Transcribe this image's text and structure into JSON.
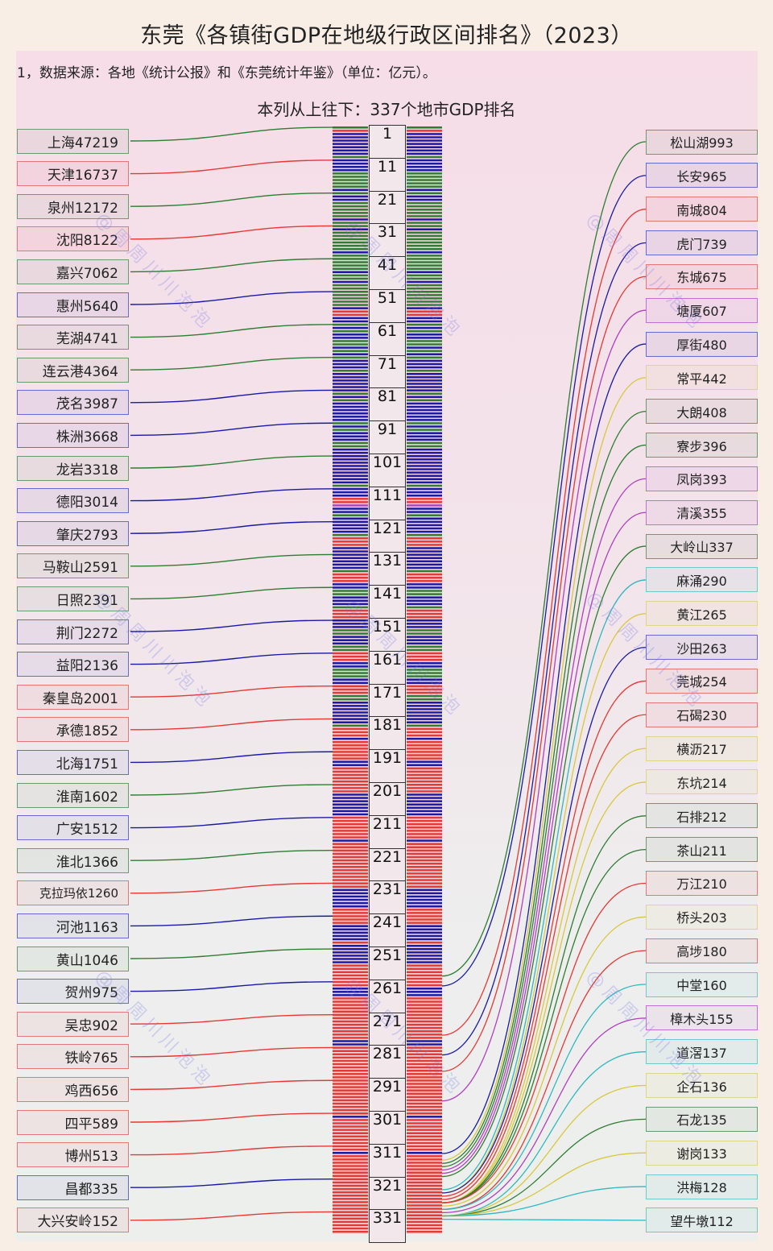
{
  "header": {
    "title": "东莞《各镇街GDP在地级行政区间排名》（2023）",
    "note": "1，数据来源：各地《统计公报》和《东莞统计年鉴》（单位：亿元）。",
    "column_caption": "本列从上往下：337个地市GDP排名"
  },
  "watermark": "@周周川川泡泡",
  "colors": {
    "green": "#2e7d32",
    "red": "#e53935",
    "blue": "#1a1aa6",
    "brown": "#b5653a",
    "purple": "#b040c0",
    "cyan": "#30b8c0",
    "yellow": "#d8c840",
    "pink": "#e05870"
  },
  "chart_data": {
    "type": "table",
    "title": "东莞《各镇街GDP在地级行政区间排名》（2023）",
    "subtitle": "本列从上往下：337个地市GDP排名",
    "unit": "亿元",
    "total_ranks": 337,
    "rank_ticks": [
      1,
      11,
      21,
      31,
      41,
      51,
      61,
      71,
      81,
      91,
      101,
      111,
      121,
      131,
      141,
      151,
      161,
      171,
      181,
      191,
      201,
      211,
      221,
      231,
      241,
      251,
      261,
      271,
      281,
      291,
      301,
      311,
      321,
      331
    ],
    "cities": [
      {
        "name": "上海",
        "gdp": 47219,
        "rank": 1,
        "color": "green"
      },
      {
        "name": "天津",
        "gdp": 16737,
        "rank": 11,
        "color": "red"
      },
      {
        "name": "泉州",
        "gdp": 12172,
        "rank": 21,
        "color": "green"
      },
      {
        "name": "沈阳",
        "gdp": 8122,
        "rank": 31,
        "color": "red"
      },
      {
        "name": "嘉兴",
        "gdp": 7062,
        "rank": 41,
        "color": "green"
      },
      {
        "name": "惠州",
        "gdp": 5640,
        "rank": 51,
        "color": "blue"
      },
      {
        "name": "芜湖",
        "gdp": 4741,
        "rank": 61,
        "color": "green"
      },
      {
        "name": "连云港",
        "gdp": 4364,
        "rank": 71,
        "color": "green"
      },
      {
        "name": "茂名",
        "gdp": 3987,
        "rank": 81,
        "color": "blue"
      },
      {
        "name": "株洲",
        "gdp": 3668,
        "rank": 91,
        "color": "blue"
      },
      {
        "name": "龙岩",
        "gdp": 3318,
        "rank": 101,
        "color": "green"
      },
      {
        "name": "德阳",
        "gdp": 3014,
        "rank": 111,
        "color": "blue"
      },
      {
        "name": "肇庆",
        "gdp": 2793,
        "rank": 121,
        "color": "blue"
      },
      {
        "name": "马鞍山",
        "gdp": 2591,
        "rank": 131,
        "color": "green"
      },
      {
        "name": "日照",
        "gdp": 2391,
        "rank": 141,
        "color": "green"
      },
      {
        "name": "荆门",
        "gdp": 2272,
        "rank": 151,
        "color": "blue"
      },
      {
        "name": "益阳",
        "gdp": 2136,
        "rank": 161,
        "color": "blue"
      },
      {
        "name": "秦皇岛",
        "gdp": 2001,
        "rank": 171,
        "color": "red"
      },
      {
        "name": "承德",
        "gdp": 1852,
        "rank": 181,
        "color": "red"
      },
      {
        "name": "北海",
        "gdp": 1751,
        "rank": 191,
        "color": "blue"
      },
      {
        "name": "淮南",
        "gdp": 1602,
        "rank": 201,
        "color": "green"
      },
      {
        "name": "广安",
        "gdp": 1512,
        "rank": 211,
        "color": "blue"
      },
      {
        "name": "淮北",
        "gdp": 1366,
        "rank": 221,
        "color": "green"
      },
      {
        "name": "克拉玛依",
        "gdp": 1260,
        "rank": 231,
        "color": "red"
      },
      {
        "name": "河池",
        "gdp": 1163,
        "rank": 241,
        "color": "blue"
      },
      {
        "name": "黄山",
        "gdp": 1046,
        "rank": 251,
        "color": "green"
      },
      {
        "name": "贺州",
        "gdp": 975,
        "rank": 261,
        "color": "blue"
      },
      {
        "name": "吴忠",
        "gdp": 902,
        "rank": 271,
        "color": "red"
      },
      {
        "name": "铁岭",
        "gdp": 765,
        "rank": 281,
        "color": "red"
      },
      {
        "name": "鸡西",
        "gdp": 656,
        "rank": 291,
        "color": "red"
      },
      {
        "name": "四平",
        "gdp": 589,
        "rank": 301,
        "color": "red"
      },
      {
        "name": "博州",
        "gdp": 513,
        "rank": 311,
        "color": "red"
      },
      {
        "name": "昌都",
        "gdp": 335,
        "rank": 321,
        "color": "blue"
      },
      {
        "name": "大兴安岭",
        "gdp": 152,
        "rank": 331,
        "color": "red"
      }
    ],
    "towns": [
      {
        "name": "松山湖",
        "gdp": 993,
        "rank": 259,
        "color": "green"
      },
      {
        "name": "长安",
        "gdp": 965,
        "rank": 262,
        "color": "blue"
      },
      {
        "name": "南城",
        "gdp": 804,
        "rank": 277,
        "color": "red"
      },
      {
        "name": "虎门",
        "gdp": 739,
        "rank": 283,
        "color": "blue"
      },
      {
        "name": "东城",
        "gdp": 675,
        "rank": 288,
        "color": "red"
      },
      {
        "name": "塘厦",
        "gdp": 607,
        "rank": 297,
        "color": "purple"
      },
      {
        "name": "厚街",
        "gdp": 480,
        "rank": 313,
        "color": "blue"
      },
      {
        "name": "常平",
        "gdp": 442,
        "rank": 315,
        "color": "yellow"
      },
      {
        "name": "大朗",
        "gdp": 408,
        "rank": 316,
        "color": "green"
      },
      {
        "name": "寮步",
        "gdp": 396,
        "rank": 317,
        "color": "green"
      },
      {
        "name": "凤岗",
        "gdp": 393,
        "rank": 318,
        "color": "purple"
      },
      {
        "name": "清溪",
        "gdp": 355,
        "rank": 319,
        "color": "purple"
      },
      {
        "name": "大岭山",
        "gdp": 337,
        "rank": 320,
        "color": "green"
      },
      {
        "name": "麻涌",
        "gdp": 290,
        "rank": 324,
        "color": "cyan"
      },
      {
        "name": "黄江",
        "gdp": 265,
        "rank": 325,
        "color": "yellow"
      },
      {
        "name": "沙田",
        "gdp": 263,
        "rank": 325,
        "color": "blue"
      },
      {
        "name": "莞城",
        "gdp": 254,
        "rank": 326,
        "color": "red"
      },
      {
        "name": "石碣",
        "gdp": 230,
        "rank": 327,
        "color": "red"
      },
      {
        "name": "横沥",
        "gdp": 217,
        "rank": 328,
        "color": "yellow"
      },
      {
        "name": "东坑",
        "gdp": 214,
        "rank": 328,
        "color": "yellow"
      },
      {
        "name": "石排",
        "gdp": 212,
        "rank": 328,
        "color": "green"
      },
      {
        "name": "茶山",
        "gdp": 211,
        "rank": 328,
        "color": "green"
      },
      {
        "name": "万江",
        "gdp": 210,
        "rank": 328,
        "color": "red"
      },
      {
        "name": "桥头",
        "gdp": 203,
        "rank": 329,
        "color": "yellow"
      },
      {
        "name": "高埗",
        "gdp": 180,
        "rank": 330,
        "color": "red"
      },
      {
        "name": "中堂",
        "gdp": 160,
        "rank": 330,
        "color": "cyan"
      },
      {
        "name": "樟木头",
        "gdp": 155,
        "rank": 331,
        "color": "purple"
      },
      {
        "name": "道滘",
        "gdp": 137,
        "rank": 332,
        "color": "cyan"
      },
      {
        "name": "企石",
        "gdp": 136,
        "rank": 332,
        "color": "yellow"
      },
      {
        "name": "石龙",
        "gdp": 135,
        "rank": 332,
        "color": "green"
      },
      {
        "name": "谢岗",
        "gdp": 133,
        "rank": 332,
        "color": "yellow"
      },
      {
        "name": "洪梅",
        "gdp": 128,
        "rank": 332,
        "color": "cyan"
      },
      {
        "name": "望牛墩",
        "gdp": 112,
        "rank": 333,
        "color": "cyan"
      }
    ],
    "stripe_pattern": "grbbbbbbbgbbbbgggggbgbbgggggbggbggggggbgggggbggbgggggggbrrbbgbgbbggbgbgbbbgbbbbbbgbgbbbbbbgbgbbbggbbbbbbbbbbbgbbbrrpbbgbbbbbgrrrbbbbbbbgrrrbbggbbbgrrrbbbggbbbggrrrbbgggbbrrrggbbbbbbbgrrrbrrrrrrbbrrrrrrrrbbbbbbbrrrrrrrbrrrrrrrrrrrrrrbbbbbbrrrrrbbbbbrbbbbbbrrrrrrrbbbrrrrrrrrrrrrrbbrrrrrrrrrrrrrrrrrrrrrbrrrrrrrrrrbrrrrrrrrrrrrrrrrrrrrrrrrrrbbbbrrrbbbrrrrrbbbbbrrrrbbbbrrrrrbbbrr"
  }
}
